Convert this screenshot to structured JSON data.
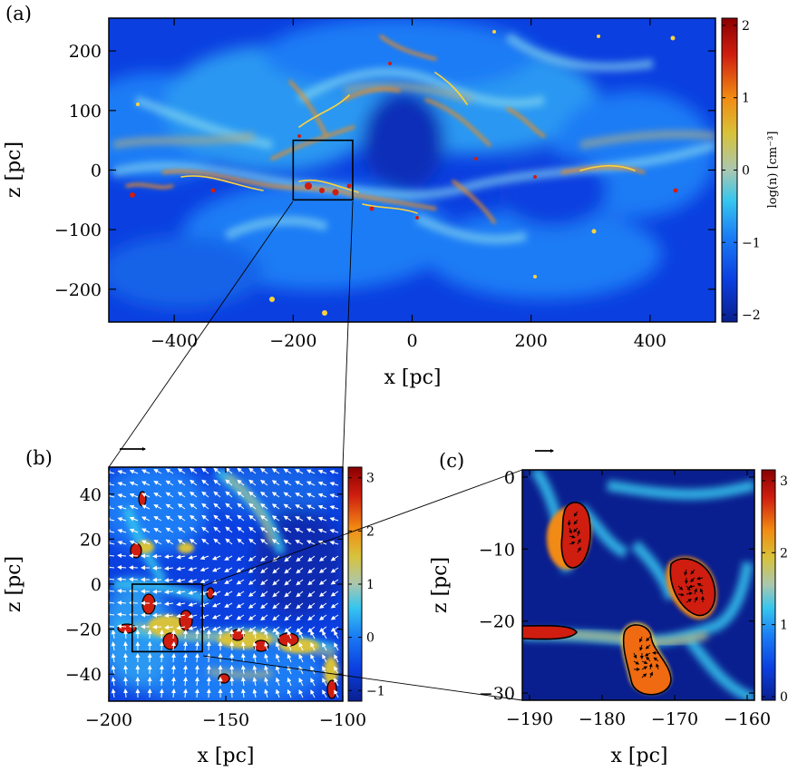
{
  "chart_data": [
    {
      "type": "heatmap",
      "panel_label": "(a)",
      "xlabel": "x [pc]",
      "ylabel": "z [pc]",
      "xlim": [
        -510,
        510
      ],
      "ylim": [
        -255,
        255
      ],
      "xticks": [
        -400,
        -200,
        0,
        200,
        400
      ],
      "yticks": [
        -200,
        -100,
        0,
        100,
        200
      ],
      "xtick_labels": [
        "−400",
        "−200",
        "0",
        "200",
        "400"
      ],
      "ytick_labels": [
        "−200",
        "−100",
        "0",
        "100",
        "200"
      ],
      "colorbar": {
        "label": "log(n) [cm⁻³]",
        "range": [
          -2.1,
          2.1
        ],
        "ticks": [
          -2,
          -1,
          0,
          1,
          2
        ],
        "tick_labels": [
          "−2",
          "−1",
          "0",
          "1",
          "2"
        ]
      },
      "zoom_box": {
        "x": [
          -200,
          -100
        ],
        "z": [
          -50,
          50
        ]
      }
    },
    {
      "type": "heatmap",
      "panel_label": "(b)",
      "xlabel": "x [pc]",
      "ylabel": "z [pc]",
      "xlim": [
        -200,
        -100
      ],
      "ylim": [
        -52,
        52
      ],
      "xticks": [
        -200,
        -150,
        -100
      ],
      "yticks": [
        -40,
        -20,
        0,
        20,
        40
      ],
      "xtick_labels": [
        "−200",
        "−150",
        "−100"
      ],
      "ytick_labels": [
        "−40",
        "−20",
        "0",
        "20",
        "40"
      ],
      "colorbar": {
        "range": [
          -1.2,
          3.2
        ],
        "ticks": [
          -1,
          0,
          1,
          2,
          3
        ],
        "tick_labels": [
          "−1",
          "0",
          "1",
          "2",
          "3"
        ]
      },
      "zoom_box": {
        "x": [
          -190,
          -160
        ],
        "z": [
          -30,
          0
        ]
      },
      "velocity_field": true
    },
    {
      "type": "heatmap",
      "panel_label": "(c)",
      "xlabel": "x [pc]",
      "ylabel": "z [pc]",
      "xlim": [
        -191,
        -159
      ],
      "ylim": [
        -31,
        1
      ],
      "xticks": [
        -190,
        -180,
        -170,
        -160
      ],
      "yticks": [
        -30,
        -20,
        -10,
        0
      ],
      "xtick_labels": [
        "−190",
        "−180",
        "−170",
        "−160"
      ],
      "ytick_labels": [
        "−30",
        "−20",
        "−10",
        "0"
      ],
      "colorbar": {
        "range": [
          -0.05,
          3.15
        ],
        "ticks": [
          0,
          1,
          2,
          3
        ],
        "tick_labels": [
          "0",
          "1",
          "2",
          "3"
        ]
      },
      "velocity_field": true
    }
  ],
  "colors": {
    "colormap": [
      "#0a1f8f",
      "#0b3fe0",
      "#1a7cf5",
      "#36c6ee",
      "#a9c7b0",
      "#d8c23a",
      "#f28a12",
      "#cf1d10",
      "#8a0000"
    ],
    "contour": "#000000",
    "arrow": "#ffffff"
  }
}
